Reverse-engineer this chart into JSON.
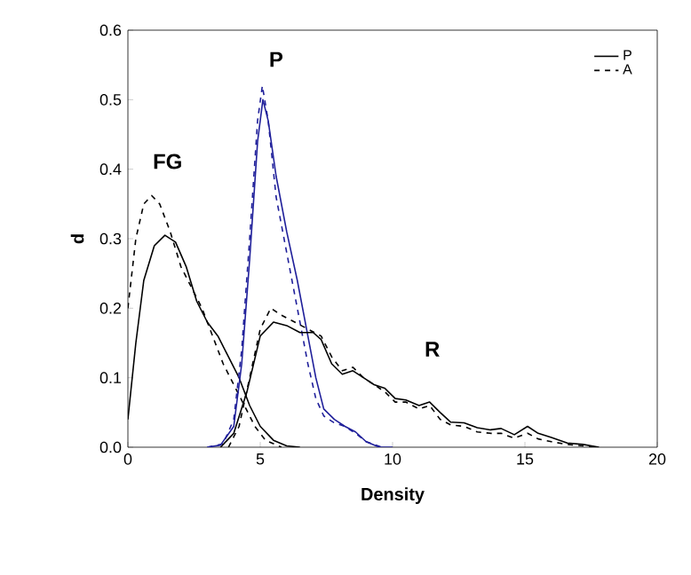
{
  "chart_data": {
    "type": "line",
    "xlabel": "Density",
    "ylabel": "d",
    "xlim": [
      0,
      20
    ],
    "ylim": [
      0,
      0.6
    ],
    "xticks": [
      0,
      5,
      10,
      15,
      20
    ],
    "yticks": [
      {
        "value": 0,
        "label": "0.0"
      },
      {
        "value": 0.1,
        "label": "0.1"
      },
      {
        "value": 0.2,
        "label": "0.2"
      },
      {
        "value": 0.3,
        "label": "0.3"
      },
      {
        "value": 0.4,
        "label": "0.4"
      },
      {
        "value": 0.5,
        "label": "0.5"
      },
      {
        "value": 0.6,
        "label": "0.6"
      }
    ],
    "legend": "top right",
    "grid": false,
    "marker": "none",
    "annotations": [
      "FG",
      "P",
      "R"
    ],
    "series": [
      {
        "name": "P",
        "color": "#000000",
        "line_style": "solid",
        "x": [
          0,
          0.3,
          0.6,
          1.0,
          1.4,
          1.8,
          2.2,
          2.6,
          3.0,
          3.4,
          3.8,
          4.2,
          4.6,
          5.0,
          5.5,
          6.0,
          6.5
        ],
        "values": [
          0.04,
          0.15,
          0.24,
          0.29,
          0.305,
          0.295,
          0.26,
          0.21,
          0.18,
          0.16,
          0.13,
          0.1,
          0.06,
          0.03,
          0.01,
          0.002,
          0
        ]
      },
      {
        "name": "A",
        "color": "#000000",
        "line_style": "dashed",
        "x": [
          0,
          0.3,
          0.6,
          0.9,
          1.2,
          1.6,
          2.0,
          2.4,
          2.8,
          3.2,
          3.6,
          4.0,
          4.4,
          4.8,
          5.2,
          5.8
        ],
        "values": [
          0.2,
          0.3,
          0.35,
          0.362,
          0.35,
          0.31,
          0.26,
          0.23,
          0.2,
          0.16,
          0.12,
          0.09,
          0.06,
          0.03,
          0.01,
          0
        ]
      },
      {
        "color": "#1f1f9a",
        "line_style": "solid",
        "x": [
          3.0,
          3.5,
          4.0,
          4.3,
          4.6,
          4.9,
          5.1,
          5.3,
          5.6,
          6.0,
          6.4,
          6.8,
          7.1,
          7.4,
          7.8,
          8.2,
          8.6,
          9.0,
          9.5,
          10
        ],
        "values": [
          0,
          0.003,
          0.03,
          0.12,
          0.27,
          0.44,
          0.5,
          0.47,
          0.39,
          0.31,
          0.24,
          0.16,
          0.1,
          0.055,
          0.04,
          0.03,
          0.022,
          0.008,
          0,
          0
        ]
      },
      {
        "color": "#1f1f9a",
        "line_style": "dashed",
        "x": [
          3.0,
          3.6,
          4.0,
          4.3,
          4.6,
          4.9,
          5.08,
          5.3,
          5.6,
          6.0,
          6.4,
          6.8,
          7.1,
          7.4,
          7.8,
          8.2,
          8.6,
          9.0,
          9.6
        ],
        "values": [
          0,
          0.005,
          0.04,
          0.14,
          0.3,
          0.47,
          0.52,
          0.47,
          0.36,
          0.28,
          0.2,
          0.12,
          0.07,
          0.045,
          0.035,
          0.03,
          0.02,
          0.008,
          0
        ]
      },
      {
        "color": "#000000",
        "line_style": "solid",
        "x": [
          3.5,
          4.0,
          4.5,
          5.0,
          5.5,
          6.0,
          6.5,
          7.0,
          7.3,
          7.7,
          8.1,
          8.5,
          8.9,
          9.3,
          9.7,
          10.1,
          10.5,
          11.0,
          11.4,
          11.8,
          12.2,
          12.7,
          13.2,
          13.7,
          14.1,
          14.6,
          15.1,
          15.5,
          16.0,
          16.6,
          17.2,
          17.8
        ],
        "values": [
          0,
          0.02,
          0.08,
          0.16,
          0.18,
          0.175,
          0.165,
          0.165,
          0.155,
          0.12,
          0.105,
          0.11,
          0.1,
          0.09,
          0.085,
          0.07,
          0.068,
          0.06,
          0.065,
          0.05,
          0.036,
          0.035,
          0.028,
          0.025,
          0.027,
          0.018,
          0.03,
          0.02,
          0.014,
          0.006,
          0.004,
          0
        ]
      },
      {
        "color": "#000000",
        "line_style": "dashed",
        "x": [
          3.8,
          4.2,
          4.6,
          5.0,
          5.4,
          5.8,
          6.3,
          6.8,
          7.3,
          7.7,
          8.1,
          8.5,
          8.9,
          9.3,
          9.7,
          10.1,
          10.5,
          11.0,
          11.4,
          11.8,
          12.2,
          12.7,
          13.2,
          13.7,
          14.1,
          14.6,
          15.1,
          15.5,
          16.0,
          16.6,
          17.2,
          17.8
        ],
        "values": [
          0,
          0.03,
          0.1,
          0.17,
          0.2,
          0.19,
          0.18,
          0.17,
          0.16,
          0.13,
          0.11,
          0.115,
          0.1,
          0.09,
          0.08,
          0.065,
          0.065,
          0.055,
          0.06,
          0.04,
          0.032,
          0.03,
          0.022,
          0.02,
          0.02,
          0.013,
          0.02,
          0.012,
          0.008,
          0.004,
          0.002,
          0
        ]
      }
    ]
  }
}
